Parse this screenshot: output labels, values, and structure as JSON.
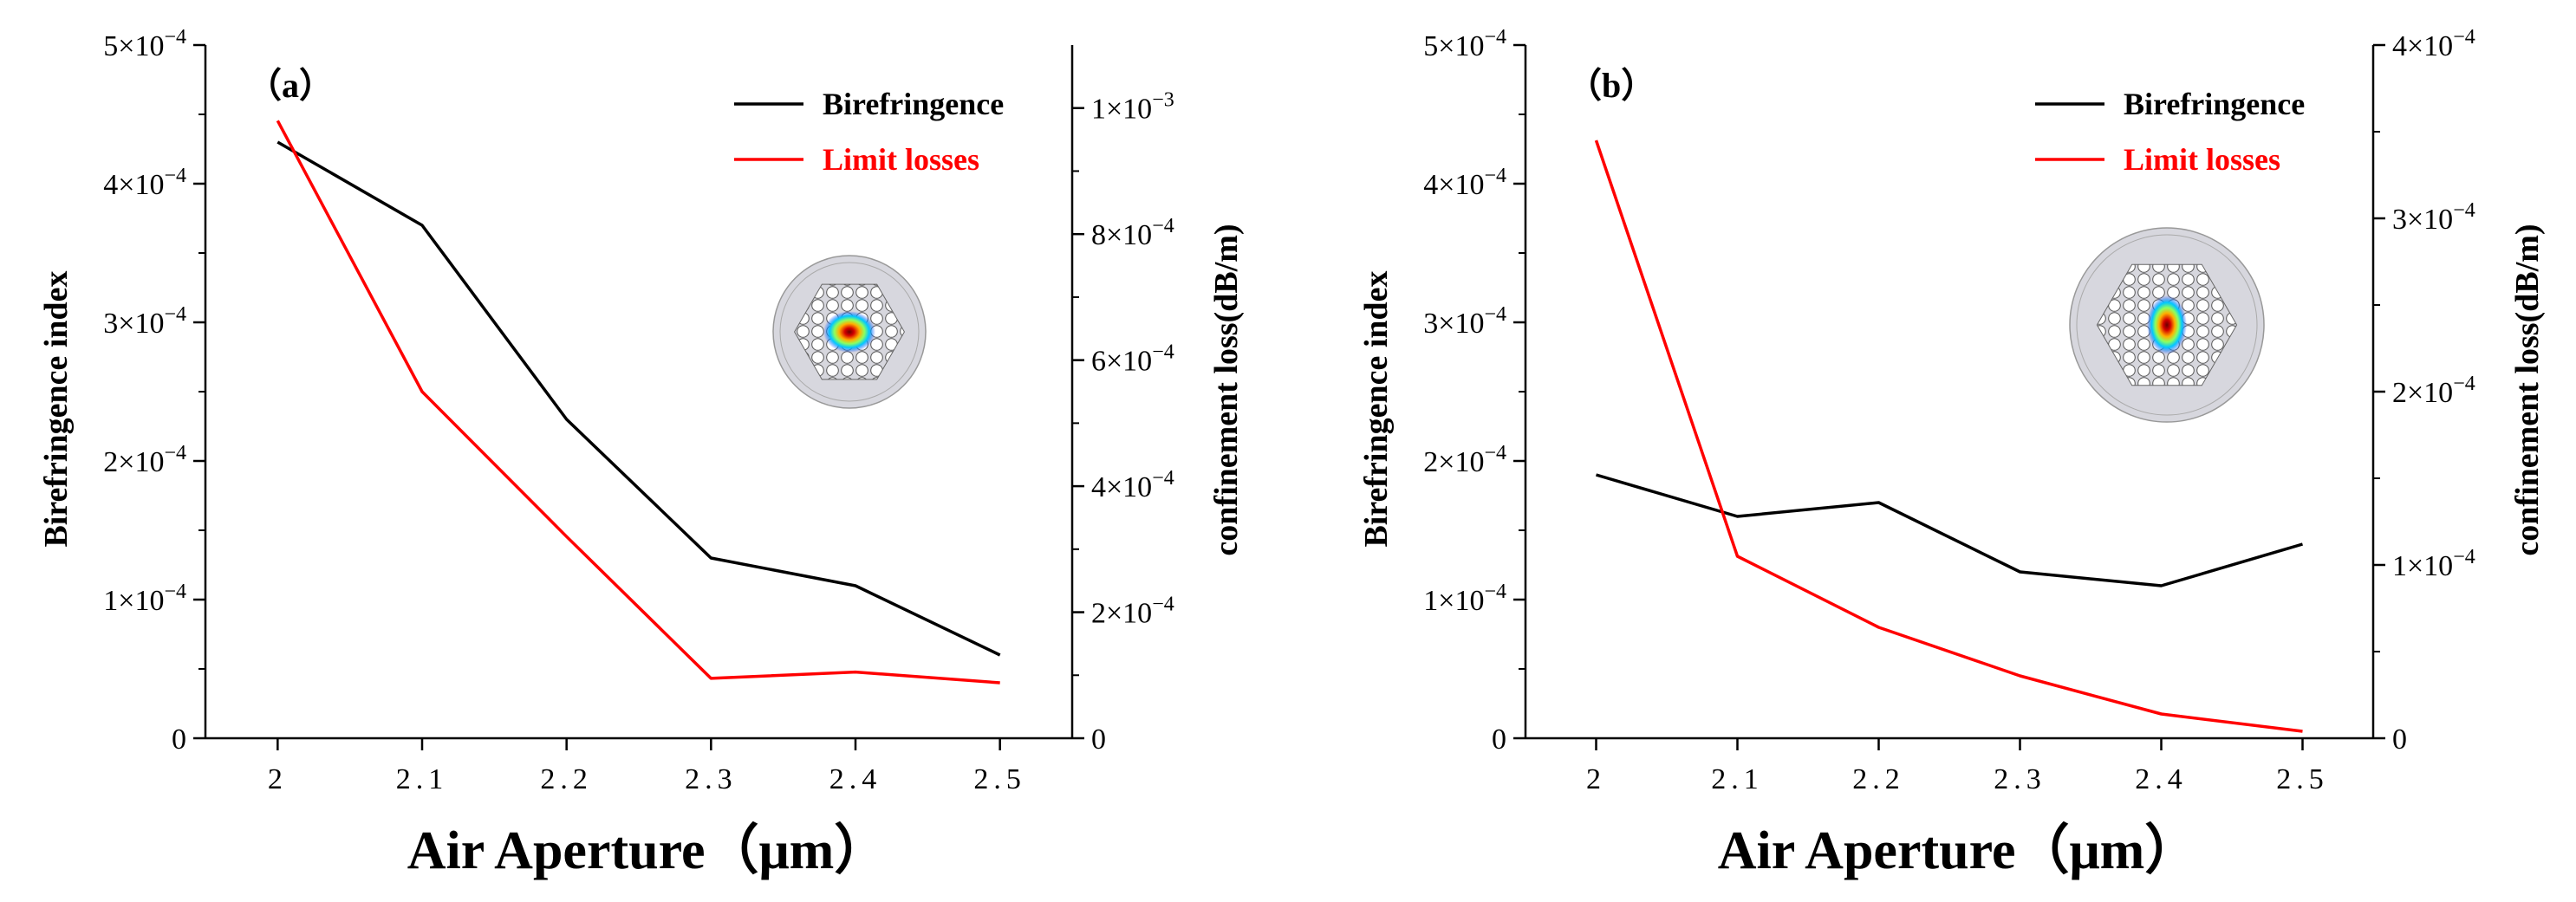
{
  "colors": {
    "birefringence": "#000000",
    "limit_losses": "#ff0000",
    "axis": "#000000"
  },
  "chart_data": [
    {
      "type": "line",
      "panel_label": "（a）",
      "xlabel": "Air Aperture（μm）",
      "ylabel_left": "Birefringence index",
      "ylabel_right": "confinement loss(dB/m)",
      "x": [
        2.0,
        2.1,
        2.2,
        2.3,
        2.4,
        2.5
      ],
      "x_tick_labels": [
        "2",
        "2.1",
        "2.2",
        "2.3",
        "2.4",
        "2.5"
      ],
      "xlim": [
        1.95,
        2.55
      ],
      "ylim_left": [
        0,
        0.0005
      ],
      "ylim_right": [
        0,
        0.0011
      ],
      "y_left_ticks": [
        {
          "value": 0,
          "mant": "0",
          "exp": ""
        },
        {
          "value": 0.0001,
          "mant": "1×10",
          "exp": "−4"
        },
        {
          "value": 0.0002,
          "mant": "2×10",
          "exp": "−4"
        },
        {
          "value": 0.0003,
          "mant": "3×10",
          "exp": "−4"
        },
        {
          "value": 0.0004,
          "mant": "4×10",
          "exp": "−4"
        },
        {
          "value": 0.0005,
          "mant": "5×10",
          "exp": "−4"
        }
      ],
      "y_right_ticks": [
        {
          "value": 0,
          "mant": "0",
          "exp": ""
        },
        {
          "value": 0.0002,
          "mant": "2×10",
          "exp": "−4"
        },
        {
          "value": 0.0004,
          "mant": "4×10",
          "exp": "−4"
        },
        {
          "value": 0.0006,
          "mant": "6×10",
          "exp": "−4"
        },
        {
          "value": 0.0008,
          "mant": "8×10",
          "exp": "−4"
        },
        {
          "value": 0.001,
          "mant": "1×10",
          "exp": "−3"
        }
      ],
      "series": [
        {
          "name": "Birefringence",
          "axis": "left",
          "color": "#000000",
          "values": [
            0.00043,
            0.00037,
            0.00023,
            0.00013,
            0.00011,
            6e-05
          ]
        },
        {
          "name": "Limit losses",
          "axis": "right",
          "color": "#ff0000",
          "values": [
            0.00098,
            0.00055,
            0.00032,
            9.5e-05,
            0.000105,
            8.8e-05
          ]
        }
      ],
      "legend": [
        "Birefringence",
        "Limit losses"
      ],
      "legend_position": "top-right",
      "inset": "fiber cross-section mode profile, horizontally elongated"
    },
    {
      "type": "line",
      "panel_label": "（b）",
      "xlabel": "Air Aperture（μm）",
      "ylabel_left": "Birefringence index",
      "ylabel_right": "confinement loss(dB/m)",
      "x": [
        2.0,
        2.1,
        2.2,
        2.3,
        2.4,
        2.5
      ],
      "x_tick_labels": [
        "2",
        "2.1",
        "2.2",
        "2.3",
        "2.4",
        "2.5"
      ],
      "xlim": [
        1.95,
        2.55
      ],
      "ylim_left": [
        0,
        0.0005
      ],
      "ylim_right": [
        0,
        0.0004
      ],
      "y_left_ticks": [
        {
          "value": 0,
          "mant": "0",
          "exp": ""
        },
        {
          "value": 0.0001,
          "mant": "1×10",
          "exp": "−4"
        },
        {
          "value": 0.0002,
          "mant": "2×10",
          "exp": "−4"
        },
        {
          "value": 0.0003,
          "mant": "3×10",
          "exp": "−4"
        },
        {
          "value": 0.0004,
          "mant": "4×10",
          "exp": "−4"
        },
        {
          "value": 0.0005,
          "mant": "5×10",
          "exp": "−4"
        }
      ],
      "y_right_ticks": [
        {
          "value": 0,
          "mant": "0",
          "exp": ""
        },
        {
          "value": 0.0001,
          "mant": "1×10",
          "exp": "−4"
        },
        {
          "value": 0.0002,
          "mant": "2×10",
          "exp": "−4"
        },
        {
          "value": 0.0003,
          "mant": "3×10",
          "exp": "−4"
        },
        {
          "value": 0.0004,
          "mant": "4×10",
          "exp": "−4"
        }
      ],
      "series": [
        {
          "name": "Birefringence",
          "axis": "left",
          "color": "#000000",
          "values": [
            0.00019,
            0.00016,
            0.00017,
            0.00012,
            0.00011,
            0.00014
          ]
        },
        {
          "name": "Limit losses",
          "axis": "right",
          "color": "#ff0000",
          "values": [
            0.000345,
            0.000105,
            6.4e-05,
            3.6e-05,
            1.4e-05,
            4e-06
          ]
        }
      ],
      "legend": [
        "Birefringence",
        "Limit losses"
      ],
      "legend_position": "top-right",
      "inset": "fiber cross-section mode profile, vertically elongated"
    }
  ]
}
